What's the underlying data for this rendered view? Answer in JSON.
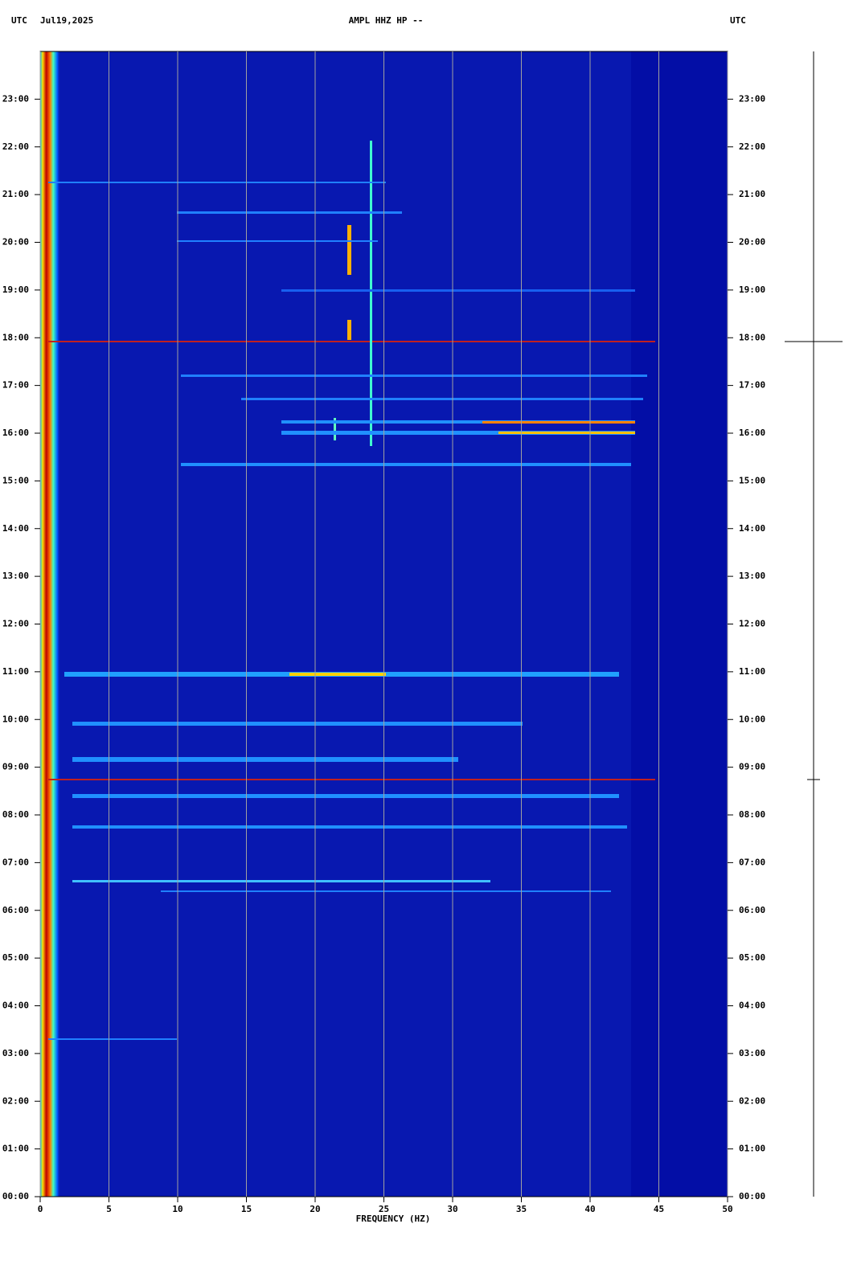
{
  "chart_data": {
    "type": "spectrogram",
    "title": "AMPL HHZ HP --",
    "left_label": "UTC",
    "date": "Jul19,2025",
    "right_label": "UTC",
    "x_label": "FREQUENCY (HZ)",
    "xlim": [
      0,
      50
    ],
    "xticks": [
      0,
      5,
      10,
      15,
      20,
      25,
      30,
      35,
      40,
      45,
      50
    ],
    "ylim": [
      0,
      24
    ],
    "yticks": [
      {
        "value": 0,
        "label": "00:00"
      },
      {
        "value": 1,
        "label": "01:00"
      },
      {
        "value": 2,
        "label": "02:00"
      },
      {
        "value": 3,
        "label": "03:00"
      },
      {
        "value": 4,
        "label": "04:00"
      },
      {
        "value": 5,
        "label": "05:00"
      },
      {
        "value": 6,
        "label": "06:00"
      },
      {
        "value": 7,
        "label": "07:00"
      },
      {
        "value": 8,
        "label": "08:00"
      },
      {
        "value": 9,
        "label": "09:00"
      },
      {
        "value": 10,
        "label": "10:00"
      },
      {
        "value": 11,
        "label": "11:00"
      },
      {
        "value": 12,
        "label": "12:00"
      },
      {
        "value": 13,
        "label": "13:00"
      },
      {
        "value": 14,
        "label": "14:00"
      },
      {
        "value": 15,
        "label": "15:00"
      },
      {
        "value": 16,
        "label": "16:00"
      },
      {
        "value": 17,
        "label": "17:00"
      },
      {
        "value": 18,
        "label": "18:00"
      },
      {
        "value": 19,
        "label": "19:00"
      },
      {
        "value": 20,
        "label": "20:00"
      },
      {
        "value": 21,
        "label": "21:00"
      },
      {
        "value": 22,
        "label": "22:00"
      },
      {
        "value": 23,
        "label": "23:00"
      }
    ],
    "grid": true,
    "grid_color": "#a0a0a0",
    "background_color": "#0818b0"
  }
}
